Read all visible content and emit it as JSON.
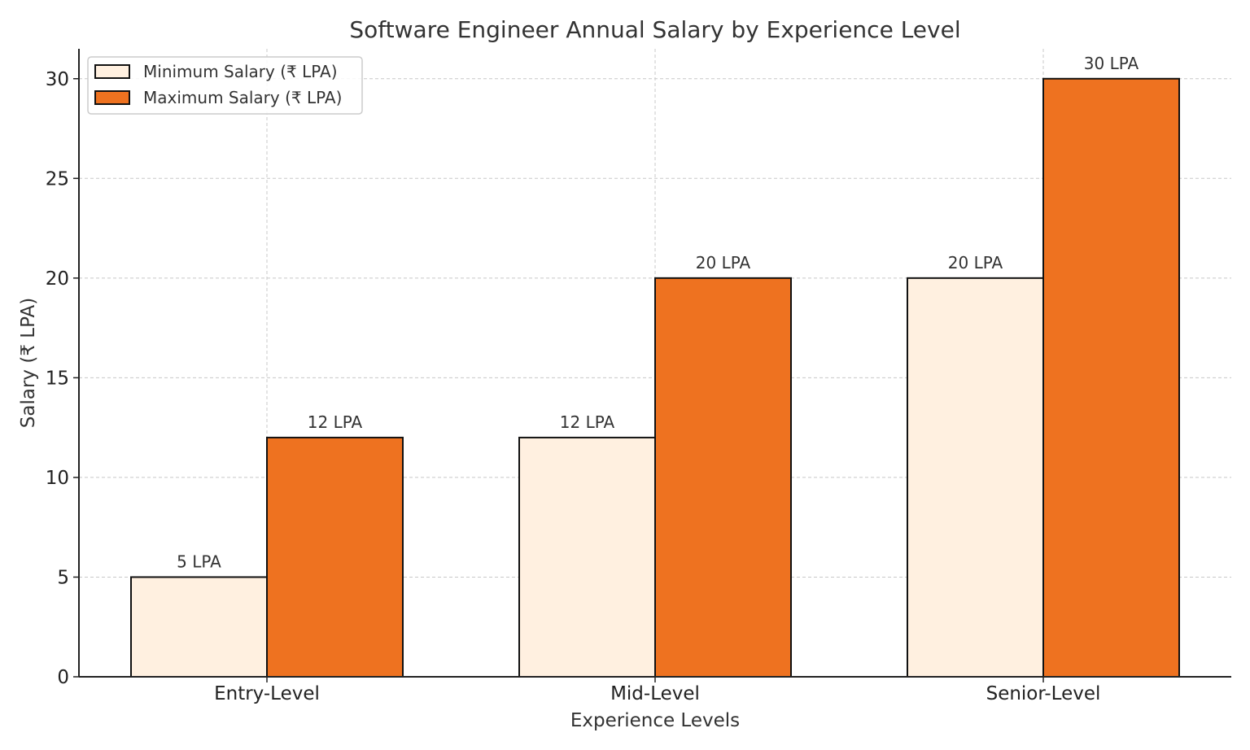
{
  "chart_data": {
    "type": "bar",
    "title": "Software Engineer Annual Salary by Experience Level",
    "xlabel": "Experience Levels",
    "ylabel": "Salary (₹ LPA)",
    "categories": [
      "Entry-Level",
      "Mid-Level",
      "Senior-Level"
    ],
    "series": [
      {
        "name": "Minimum Salary (₹ LPA)",
        "values": [
          5,
          12,
          20
        ],
        "labels": [
          "5 LPA",
          "12 LPA",
          "20 LPA"
        ],
        "color": "#fff0e0"
      },
      {
        "name": "Maximum Salary (₹ LPA)",
        "values": [
          12,
          20,
          30
        ],
        "labels": [
          "12 LPA",
          "20 LPA",
          "30 LPA"
        ],
        "color": "#ee7220"
      }
    ],
    "ylim": [
      0,
      31.5
    ],
    "yticks": [
      0,
      5,
      10,
      15,
      20,
      25,
      30
    ],
    "grid": true,
    "legend_position": "top-left"
  }
}
